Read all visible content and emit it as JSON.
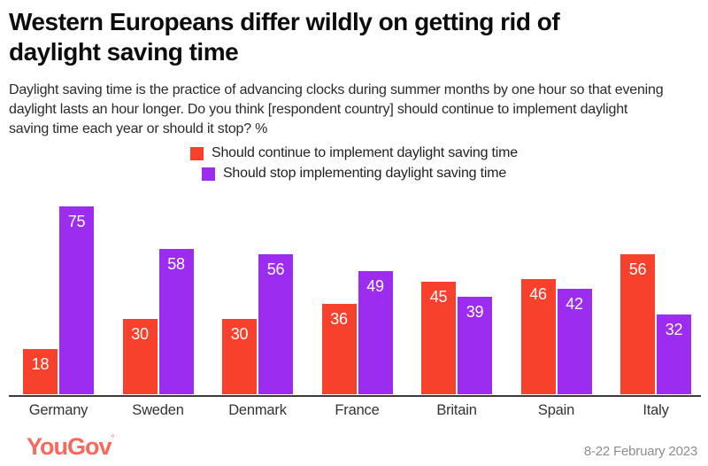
{
  "header": {
    "title": "Western Europeans differ wildly on getting rid of daylight saving time",
    "subtitle": "Daylight saving time is the practice of advancing clocks during summer months by one hour so that evening daylight lasts an hour longer. Do you think [respondent country] should continue to implement daylight saving time each year or should it stop? %"
  },
  "colors": {
    "continue": "#f8412c",
    "stop": "#9c2df0",
    "axis": "#3b3b3b",
    "logo": "#f9685a"
  },
  "chart_data": {
    "type": "bar",
    "categories": [
      "Germany",
      "Sweden",
      "Denmark",
      "France",
      "Britain",
      "Spain",
      "Italy"
    ],
    "series": [
      {
        "name": "Should continue to implement daylight saving time",
        "color": "#f8412c",
        "values": [
          18,
          30,
          30,
          36,
          45,
          46,
          56
        ]
      },
      {
        "name": "Should stop implementing daylight saving time",
        "color": "#9c2df0",
        "values": [
          75,
          58,
          56,
          49,
          39,
          42,
          32
        ]
      }
    ],
    "title": "Western Europeans differ wildly on getting rid of daylight saving time",
    "xlabel": "",
    "ylabel": "",
    "ylim": [
      0,
      75
    ],
    "grid": false,
    "legend_position": "top-center",
    "value_labels": "inside-top-white"
  },
  "footer": {
    "logo": "YouGov",
    "logo_mark": "°",
    "date": "8-22 February 2023"
  }
}
